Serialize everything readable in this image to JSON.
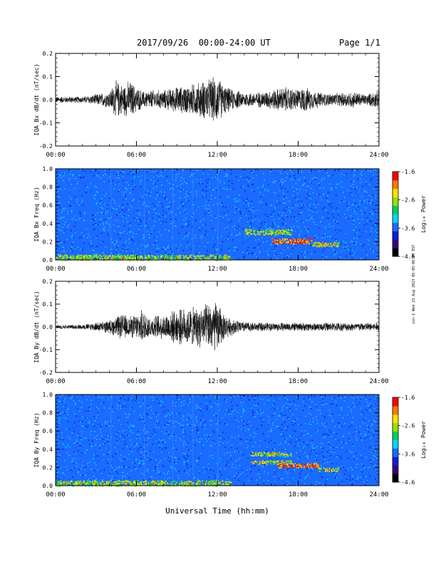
{
  "header": {
    "title": "2017/09/26  00:00-24:00 UT",
    "page": "Page 1/1"
  },
  "side_stamp": "ion-1 Wed 23 Aug 2023 05:05:06 PM EST",
  "x_axis": {
    "label": "Universal Time (hh:mm)",
    "ticks": [
      "00:00",
      "06:00",
      "12:00",
      "18:00",
      "24:00"
    ],
    "range_hours": [
      0,
      24
    ]
  },
  "colorbar": {
    "label": "Log₁₀ Power",
    "ticks": [
      "-1.6",
      "-2.6",
      "-3.6",
      "-4.6"
    ],
    "range": [
      -4.6,
      -1.6
    ],
    "colors": [
      "#000000",
      "#3b0080",
      "#0a1fd8",
      "#1a6bff",
      "#00d5ff",
      "#00d060",
      "#9bdf00",
      "#ffe000",
      "#ff7a00",
      "#ff0000"
    ]
  },
  "chart_data": [
    {
      "type": "line",
      "ylabel": "IQA Bx dB/dt (nT/sec)",
      "yticks": [
        "0.2",
        "0.1",
        "0.0",
        "-0.1",
        "-0.2"
      ],
      "ylim": [
        -0.2,
        0.2
      ],
      "x_unit": "hours UT",
      "envelope": {
        "x": [
          0,
          1,
          2,
          3,
          4,
          4.5,
          5,
          5.5,
          6,
          6.5,
          7,
          8,
          9,
          10,
          11,
          11.5,
          12,
          12.5,
          13,
          14,
          15,
          16,
          17,
          18,
          18.5,
          19,
          20,
          21,
          22,
          23,
          23.8,
          24
        ],
        "amplitude": [
          0.015,
          0.015,
          0.015,
          0.025,
          0.04,
          0.09,
          0.07,
          0.09,
          0.06,
          0.04,
          0.045,
          0.045,
          0.06,
          0.07,
          0.09,
          0.1,
          0.11,
          0.07,
          0.05,
          0.035,
          0.035,
          0.045,
          0.06,
          0.05,
          0.06,
          0.045,
          0.03,
          0.03,
          0.04,
          0.025,
          0.04,
          0.04
        ]
      }
    },
    {
      "type": "heatmap",
      "ylabel": "IQA Bx Freq (Hz)",
      "yticks": [
        "1.0",
        "0.8",
        "0.6",
        "0.4",
        "0.2",
        "0.0"
      ],
      "ylim": [
        0,
        1.0
      ],
      "background_log_power": -3.6,
      "features": [
        {
          "x": [
            14.0,
            17.5
          ],
          "freq": [
            0.28,
            0.34
          ],
          "log_power": -2.6
        },
        {
          "x": [
            16.0,
            19.0
          ],
          "freq": [
            0.18,
            0.24
          ],
          "log_power": -2.0
        },
        {
          "x": [
            19.0,
            21.0
          ],
          "freq": [
            0.15,
            0.2
          ],
          "log_power": -2.4
        },
        {
          "x": [
            0.0,
            13.0
          ],
          "freq": [
            0.0,
            0.06
          ],
          "log_power": -2.6
        }
      ]
    },
    {
      "type": "line",
      "ylabel": "IQA By dB/dt (nT/sec)",
      "yticks": [
        "0.2",
        "0.1",
        "0.0",
        "-0.1",
        "-0.2"
      ],
      "ylim": [
        -0.2,
        0.2
      ],
      "x_unit": "hours UT",
      "envelope": {
        "x": [
          0,
          1,
          2,
          3,
          4,
          4.5,
          5,
          5.5,
          6,
          6.5,
          7,
          8,
          9,
          10,
          11,
          11.5,
          12,
          12.5,
          13,
          14,
          15,
          16,
          17,
          18,
          18.5,
          19,
          20,
          21,
          22,
          23,
          23.8,
          24
        ],
        "amplitude": [
          0.01,
          0.01,
          0.012,
          0.02,
          0.03,
          0.05,
          0.06,
          0.05,
          0.06,
          0.08,
          0.05,
          0.06,
          0.08,
          0.09,
          0.1,
          0.12,
          0.12,
          0.06,
          0.04,
          0.025,
          0.02,
          0.02,
          0.02,
          0.02,
          0.02,
          0.02,
          0.02,
          0.02,
          0.02,
          0.02,
          0.02,
          0.02
        ]
      }
    },
    {
      "type": "heatmap",
      "ylabel": "IQA By Freq (Hz)",
      "yticks": [
        "1.0",
        "0.8",
        "0.6",
        "0.4",
        "0.2",
        "0.0"
      ],
      "ylim": [
        0,
        1.0
      ],
      "background_log_power": -3.6,
      "features": [
        {
          "x": [
            14.5,
            17.5
          ],
          "freq": [
            0.33,
            0.37
          ],
          "log_power": -2.6
        },
        {
          "x": [
            14.5,
            17.5
          ],
          "freq": [
            0.24,
            0.28
          ],
          "log_power": -2.5
        },
        {
          "x": [
            16.5,
            19.5
          ],
          "freq": [
            0.2,
            0.25
          ],
          "log_power": -2.0
        },
        {
          "x": [
            19.5,
            21.0
          ],
          "freq": [
            0.16,
            0.2
          ],
          "log_power": -2.5
        },
        {
          "x": [
            0.0,
            13.0
          ],
          "freq": [
            0.0,
            0.06
          ],
          "log_power": -2.6
        }
      ]
    }
  ]
}
